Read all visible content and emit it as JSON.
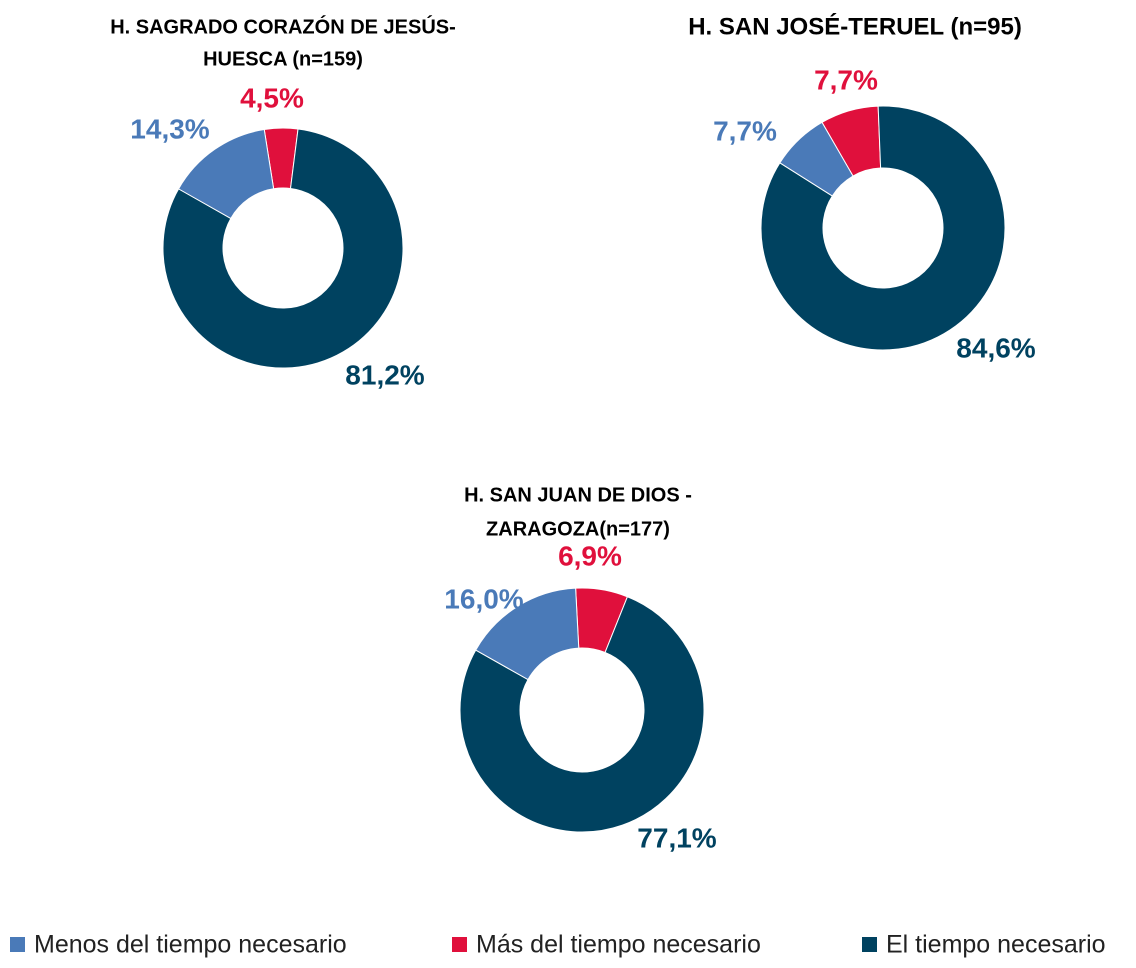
{
  "chart_data": [
    {
      "type": "pie",
      "title": [
        "H. SAGRADO CORAZÓN DE JESÚS-",
        "HUESCA (n=159)"
      ],
      "values": [
        14.3,
        4.5,
        81.2
      ],
      "value_labels": [
        "14,3%",
        "4,5%",
        "81,2%"
      ]
    },
    {
      "type": "pie",
      "title": [
        "H. SAN JOSÉ-TERUEL (n=95)"
      ],
      "values": [
        7.7,
        7.7,
        84.6
      ],
      "value_labels": [
        "7,7%",
        "7,7%",
        "84,6%"
      ]
    },
    {
      "type": "pie",
      "title": [
        "H. SAN JUAN DE DIOS -",
        "ZARAGOZA(n=177)"
      ],
      "values": [
        16.0,
        6.9,
        77.1
      ],
      "value_labels": [
        "16,0%",
        "6,9%",
        "77,1%"
      ]
    }
  ],
  "legend": {
    "labels": [
      "Menos del tiempo necesario",
      "Más del tiempo necesario",
      "El tiempo necesario"
    ],
    "colors": [
      "#4a7ab8",
      "#e0103c",
      "#004260"
    ]
  }
}
